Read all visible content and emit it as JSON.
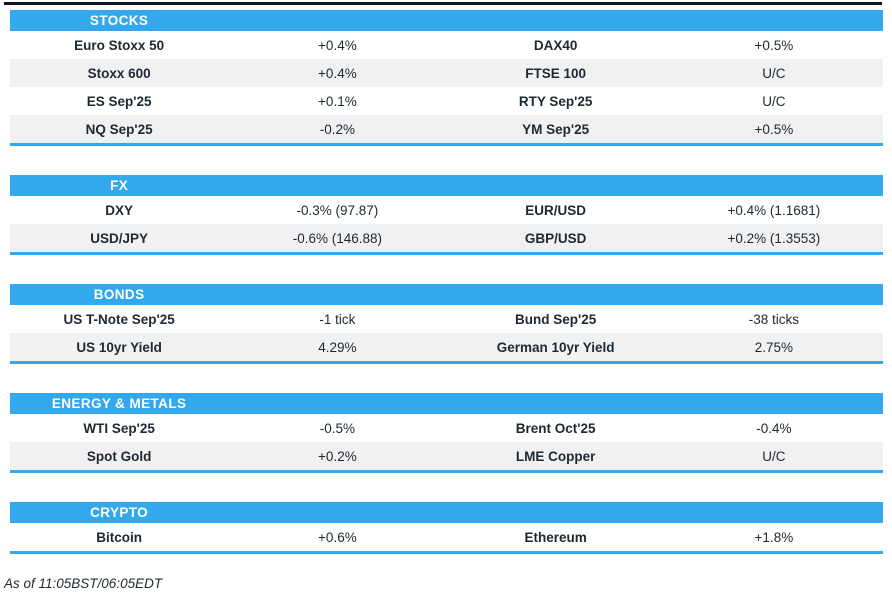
{
  "meta": {
    "description": "Market wrap price summary table",
    "accent_color": "#33a8ec",
    "row_alt_color": "#f1f1f2",
    "text_color": "#1e2832",
    "top_rule_color": "#10151b"
  },
  "sections": [
    {
      "title": "STOCKS",
      "rows": [
        {
          "left_label": "Euro Stoxx 50",
          "left_value": "+0.4%",
          "right_label": "DAX40",
          "right_value": "+0.5%"
        },
        {
          "left_label": "Stoxx 600",
          "left_value": "+0.4%",
          "right_label": "FTSE 100",
          "right_value": "U/C"
        },
        {
          "left_label": "ES Sep'25",
          "left_value": "+0.1%",
          "right_label": "RTY Sep'25",
          "right_value": "U/C"
        },
        {
          "left_label": "NQ Sep'25",
          "left_value": "-0.2%",
          "right_label": "YM Sep'25",
          "right_value": "+0.5%"
        }
      ]
    },
    {
      "title": "FX",
      "rows": [
        {
          "left_label": "DXY",
          "left_value": "-0.3% (97.87)",
          "right_label": "EUR/USD",
          "right_value": "+0.4% (1.1681)"
        },
        {
          "left_label": "USD/JPY",
          "left_value": "-0.6% (146.88)",
          "right_label": "GBP/USD",
          "right_value": "+0.2% (1.3553)"
        }
      ]
    },
    {
      "title": "BONDS",
      "rows": [
        {
          "left_label": "US T-Note Sep'25",
          "left_value": "-1 tick",
          "right_label": "Bund Sep'25",
          "right_value": "-38 ticks"
        },
        {
          "left_label": "US 10yr Yield",
          "left_value": "4.29%",
          "right_label": "German 10yr Yield",
          "right_value": "2.75%"
        }
      ]
    },
    {
      "title": "ENERGY & METALS",
      "rows": [
        {
          "left_label": "WTI Sep'25",
          "left_value": "-0.5%",
          "right_label": "Brent Oct'25",
          "right_value": "-0.4%"
        },
        {
          "left_label": "Spot Gold",
          "left_value": "+0.2%",
          "right_label": "LME Copper",
          "right_value": "U/C"
        }
      ]
    },
    {
      "title": "CRYPTO",
      "rows": [
        {
          "left_label": "Bitcoin",
          "left_value": "+0.6%",
          "right_label": "Ethereum",
          "right_value": "+1.8%"
        }
      ]
    }
  ],
  "footer": {
    "as_of": "As of 11:05BST/06:05EDT"
  }
}
